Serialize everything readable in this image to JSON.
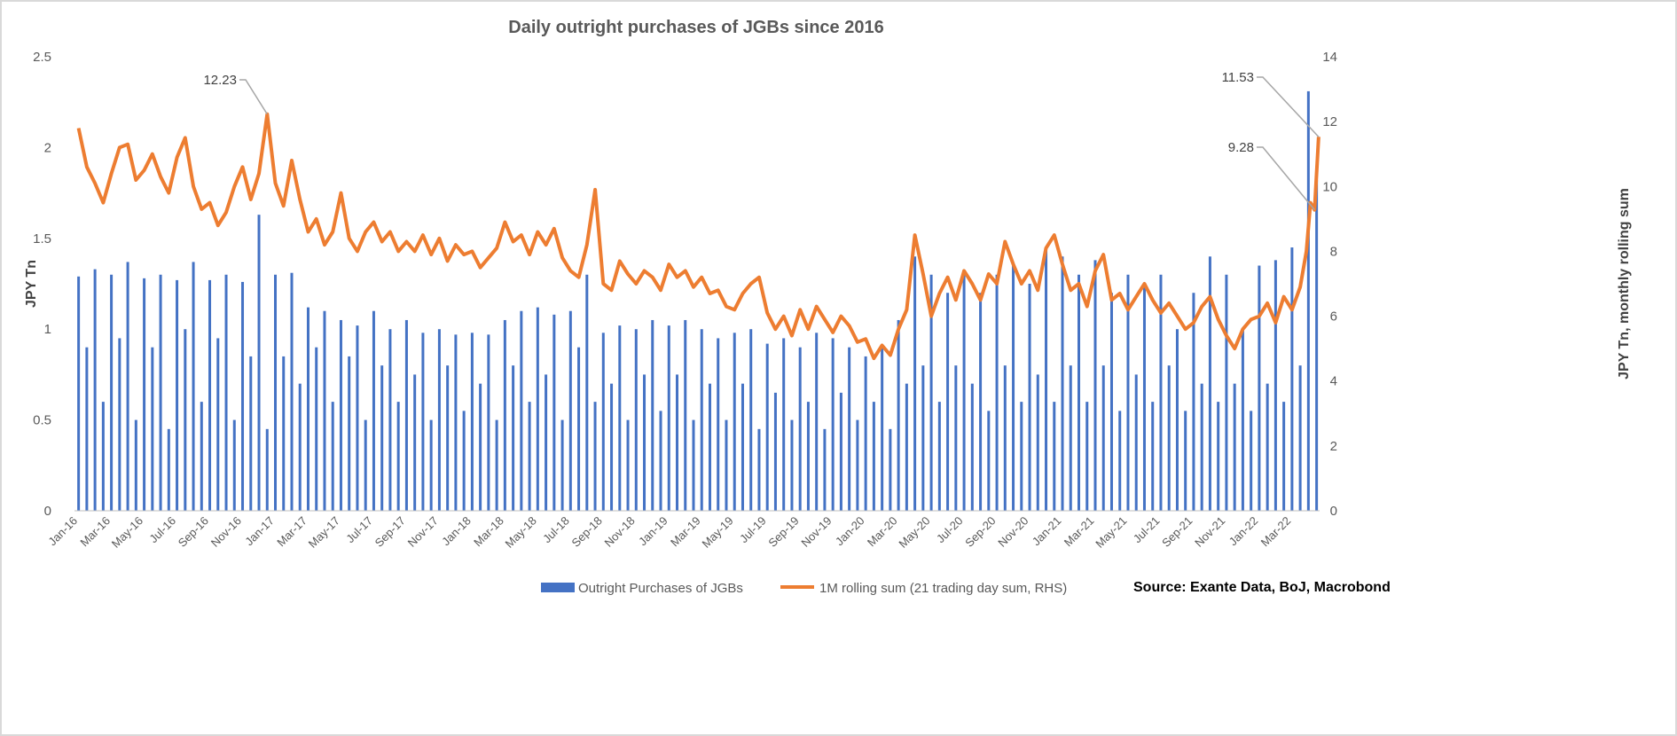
{
  "chart_data": {
    "type": "bar+line",
    "title": "Daily outright purchases of JGBs since 2016",
    "ylabel_left": "JPY Tn",
    "ylabel_right": "JPY Tn, monthly rolling sum",
    "ylim_left": [
      0,
      2.5
    ],
    "yticks_left": [
      "0",
      "0.5",
      "1",
      "1.5",
      "2",
      "2.5"
    ],
    "ylim_right": [
      0,
      14
    ],
    "yticks_right": [
      "0",
      "2",
      "4",
      "6",
      "8",
      "10",
      "12",
      "14"
    ],
    "grid": false,
    "legend_placement": "bottom",
    "source": "Source: Exante Data, BoJ, Macrobond",
    "colors": {
      "bars": "#4472c4",
      "line": "#ed7d31",
      "leader": "#a6a6a6"
    },
    "xticks": [
      "Jan-16",
      "Mar-16",
      "May-16",
      "Jul-16",
      "Sep-16",
      "Nov-16",
      "Jan-17",
      "Mar-17",
      "May-17",
      "Jul-17",
      "Sep-17",
      "Nov-17",
      "Jan-18",
      "Mar-18",
      "May-18",
      "Jul-18",
      "Sep-18",
      "Nov-18",
      "Jan-19",
      "Mar-19",
      "May-19",
      "Jul-19",
      "Sep-19",
      "Nov-19",
      "Jan-20",
      "Mar-20",
      "May-20",
      "Jul-20",
      "Sep-20",
      "Nov-20",
      "Jan-21",
      "Mar-21",
      "May-21",
      "Jul-21",
      "Sep-21",
      "Nov-21",
      "Jan-22",
      "Mar-22"
    ],
    "series": [
      {
        "name": "Outright Purchases of JGBs",
        "type": "bar",
        "axis": "left",
        "monthly": [
          [
            1.29,
            0.9
          ],
          [
            1.33,
            0.6
          ],
          [
            1.3,
            0.95
          ],
          [
            1.37,
            0.5
          ],
          [
            1.28,
            0.9
          ],
          [
            1.3,
            0.45
          ],
          [
            1.27,
            1.0
          ],
          [
            1.37,
            0.6
          ],
          [
            1.27,
            0.95
          ],
          [
            1.3,
            0.5
          ],
          [
            1.26,
            0.85
          ],
          [
            1.63,
            0.45
          ],
          [
            1.3,
            0.85
          ],
          [
            1.31,
            0.7
          ],
          [
            1.12,
            0.9
          ],
          [
            1.1,
            0.6
          ],
          [
            1.05,
            0.85
          ],
          [
            1.02,
            0.5
          ],
          [
            1.1,
            0.8
          ],
          [
            1.0,
            0.6
          ],
          [
            1.05,
            0.75
          ],
          [
            0.98,
            0.5
          ],
          [
            1.0,
            0.8
          ],
          [
            0.97,
            0.55
          ],
          [
            0.98,
            0.7
          ],
          [
            0.97,
            0.5
          ],
          [
            1.05,
            0.8
          ],
          [
            1.1,
            0.6
          ],
          [
            1.12,
            0.75
          ],
          [
            1.08,
            0.5
          ],
          [
            1.1,
            0.9
          ],
          [
            1.3,
            0.6
          ],
          [
            0.98,
            0.7
          ],
          [
            1.02,
            0.5
          ],
          [
            1.0,
            0.75
          ],
          [
            1.05,
            0.55
          ],
          [
            1.02,
            0.75
          ],
          [
            1.05,
            0.5
          ],
          [
            1.0,
            0.7
          ],
          [
            0.95,
            0.5
          ],
          [
            0.98,
            0.7
          ],
          [
            1.0,
            0.45
          ],
          [
            0.92,
            0.65
          ],
          [
            0.95,
            0.5
          ],
          [
            0.9,
            0.6
          ],
          [
            0.98,
            0.45
          ],
          [
            0.95,
            0.65
          ],
          [
            0.9,
            0.5
          ],
          [
            0.85,
            0.6
          ],
          [
            0.9,
            0.45
          ],
          [
            1.05,
            0.7
          ],
          [
            1.4,
            0.8
          ],
          [
            1.3,
            0.6
          ],
          [
            1.2,
            0.8
          ],
          [
            1.3,
            0.7
          ],
          [
            1.2,
            0.55
          ],
          [
            1.3,
            0.8
          ],
          [
            1.35,
            0.6
          ],
          [
            1.25,
            0.75
          ],
          [
            1.45,
            0.6
          ],
          [
            1.4,
            0.8
          ],
          [
            1.3,
            0.6
          ],
          [
            1.38,
            0.8
          ],
          [
            1.2,
            0.55
          ],
          [
            1.3,
            0.75
          ],
          [
            1.25,
            0.6
          ],
          [
            1.3,
            0.8
          ],
          [
            1.0,
            0.55
          ],
          [
            1.2,
            0.7
          ],
          [
            1.4,
            0.6
          ],
          [
            1.3,
            0.7
          ],
          [
            1.0,
            0.55
          ],
          [
            1.35,
            0.7
          ],
          [
            1.38,
            0.6
          ],
          [
            1.45,
            0.8
          ],
          [
            2.31,
            1.82
          ]
        ]
      },
      {
        "name": "1M rolling sum (21 trading day sum, RHS)",
        "type": "line",
        "axis": "right",
        "monthly": [
          [
            11.8,
            10.6
          ],
          [
            10.1,
            9.5
          ],
          [
            10.4,
            11.2
          ],
          [
            11.3,
            10.2
          ],
          [
            10.5,
            11.0
          ],
          [
            10.3,
            9.8
          ],
          [
            10.9,
            11.5
          ],
          [
            10.0,
            9.3
          ],
          [
            9.5,
            8.8
          ],
          [
            9.2,
            10.0
          ],
          [
            10.6,
            9.6
          ],
          [
            10.4,
            12.23
          ],
          [
            10.1,
            9.4
          ],
          [
            10.8,
            9.6
          ],
          [
            8.6,
            9.0
          ],
          [
            8.2,
            8.6
          ],
          [
            9.8,
            8.4
          ],
          [
            8.0,
            8.6
          ],
          [
            8.9,
            8.3
          ],
          [
            8.6,
            8.0
          ],
          [
            8.3,
            8.0
          ],
          [
            8.5,
            7.9
          ],
          [
            8.4,
            7.7
          ],
          [
            8.2,
            7.9
          ],
          [
            8.0,
            7.5
          ],
          [
            7.8,
            8.1
          ],
          [
            8.9,
            8.3
          ],
          [
            8.5,
            7.9
          ],
          [
            8.6,
            8.2
          ],
          [
            8.7,
            7.8
          ],
          [
            7.4,
            7.2
          ],
          [
            8.2,
            9.9
          ],
          [
            7.0,
            6.8
          ],
          [
            7.7,
            7.3
          ],
          [
            7.0,
            7.4
          ],
          [
            7.2,
            6.8
          ],
          [
            7.6,
            7.2
          ],
          [
            7.4,
            6.9
          ],
          [
            7.2,
            6.7
          ],
          [
            6.8,
            6.3
          ],
          [
            6.2,
            6.7
          ],
          [
            7.0,
            7.2
          ],
          [
            6.1,
            5.6
          ],
          [
            6.0,
            5.4
          ],
          [
            6.2,
            5.6
          ],
          [
            6.3,
            5.9
          ],
          [
            5.5,
            6.0
          ],
          [
            5.7,
            5.2
          ],
          [
            5.3,
            4.7
          ],
          [
            5.1,
            4.8
          ],
          [
            5.6,
            6.2
          ],
          [
            8.5,
            7.3
          ],
          [
            6.0,
            6.7
          ],
          [
            7.2,
            6.5
          ],
          [
            7.4,
            7.0
          ],
          [
            6.5,
            7.3
          ],
          [
            7.0,
            8.3
          ],
          [
            7.6,
            7.0
          ],
          [
            7.4,
            6.8
          ],
          [
            8.1,
            8.5
          ],
          [
            7.6,
            6.8
          ],
          [
            7.0,
            6.3
          ],
          [
            7.4,
            7.9
          ],
          [
            6.5,
            6.7
          ],
          [
            6.2,
            6.6
          ],
          [
            7.0,
            6.5
          ],
          [
            6.1,
            6.4
          ],
          [
            6.0,
            5.6
          ],
          [
            5.8,
            6.3
          ],
          [
            6.6,
            5.9
          ],
          [
            5.4,
            5.0
          ],
          [
            5.6,
            5.9
          ],
          [
            6.0,
            6.4
          ],
          [
            5.8,
            6.6
          ],
          [
            6.2,
            6.9
          ],
          [
            8.0,
            9.5,
            9.28,
            11.53
          ]
        ]
      }
    ],
    "annotations": [
      {
        "text": "12.23",
        "value": 12.23,
        "month": "Dec-16"
      },
      {
        "text": "11.53",
        "value": 11.53,
        "month": "Apr-22"
      },
      {
        "text": "9.28",
        "value": 9.28,
        "month": "Apr-22"
      }
    ]
  }
}
